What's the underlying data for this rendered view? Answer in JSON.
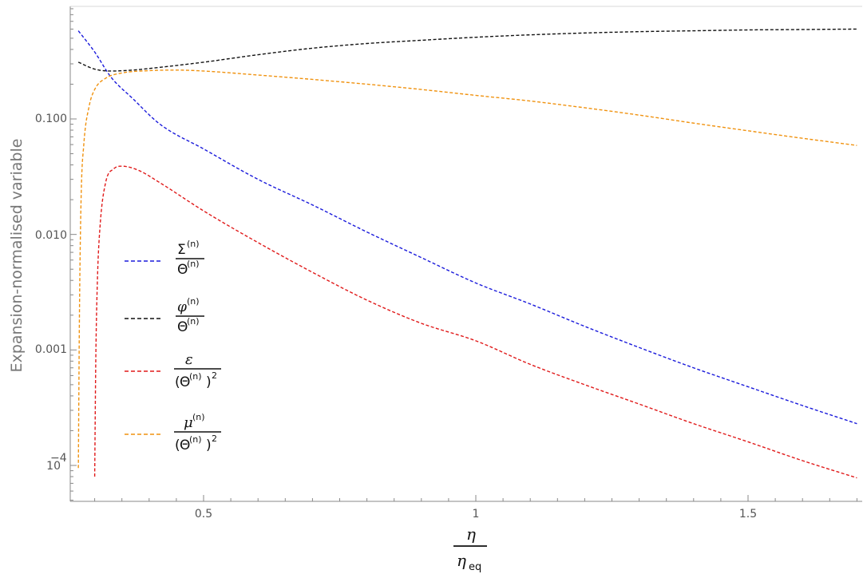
{
  "chart_data": {
    "type": "line",
    "title": "",
    "xlabel": {
      "numerator": "η",
      "denominator_base": "η",
      "denominator_sub": "eq"
    },
    "ylabel": "Expansion-normalised variable",
    "xlim": [
      0.265,
      1.7
    ],
    "ylim": [
      4e-05,
      1
    ],
    "y_scale": "log",
    "x_ticks": [
      0.5,
      1,
      1.5
    ],
    "x_tick_labels": [
      "0.5",
      "1",
      "1.5"
    ],
    "y_ticks": [
      0.0001,
      0.001,
      0.01,
      0.1
    ],
    "y_tick_labels": {
      "t001": "0.001",
      "t010": "0.010",
      "t100": "0.100",
      "t0001_base": "10",
      "t0001_exp": "−4"
    },
    "grid": false,
    "legend_position": "left",
    "line_style": "dashed",
    "series": [
      {
        "name": "Σ(n)/Θ(n)",
        "color": "#1a1adb",
        "legend": {
          "num_base": "Σ",
          "num_sup": "(n)",
          "den_base": "Θ",
          "den_sup": "(n)",
          "den_square": false
        },
        "points": [
          [
            0.27,
            0.58
          ],
          [
            0.3,
            0.38
          ],
          [
            0.33,
            0.23
          ],
          [
            0.37,
            0.15
          ],
          [
            0.42,
            0.09
          ],
          [
            0.5,
            0.055
          ],
          [
            0.6,
            0.03
          ],
          [
            0.7,
            0.018
          ],
          [
            0.8,
            0.0105
          ],
          [
            0.9,
            0.0063
          ],
          [
            1.0,
            0.0038
          ],
          [
            1.1,
            0.0025
          ],
          [
            1.2,
            0.0016
          ],
          [
            1.3,
            0.00105
          ],
          [
            1.4,
            0.0007
          ],
          [
            1.5,
            0.00048
          ],
          [
            1.6,
            0.00033
          ],
          [
            1.7,
            0.00023
          ]
        ]
      },
      {
        "name": "φ(n)/Θ(n)",
        "color": "#111111",
        "legend": {
          "num_base": "φ",
          "num_sup": "(n)",
          "den_base": "Θ",
          "den_sup": "(n)",
          "den_square": false
        },
        "points": [
          [
            0.27,
            0.31
          ],
          [
            0.3,
            0.27
          ],
          [
            0.33,
            0.26
          ],
          [
            0.37,
            0.265
          ],
          [
            0.42,
            0.28
          ],
          [
            0.5,
            0.31
          ],
          [
            0.6,
            0.36
          ],
          [
            0.7,
            0.41
          ],
          [
            0.8,
            0.45
          ],
          [
            0.9,
            0.48
          ],
          [
            1.0,
            0.51
          ],
          [
            1.1,
            0.535
          ],
          [
            1.2,
            0.555
          ],
          [
            1.3,
            0.57
          ],
          [
            1.4,
            0.58
          ],
          [
            1.5,
            0.59
          ],
          [
            1.6,
            0.595
          ],
          [
            1.7,
            0.6
          ]
        ]
      },
      {
        "name": "ε/(Θ(n))2",
        "color": "#e01a1a",
        "legend": {
          "num_base": "ε",
          "num_sup": "",
          "den_base": "Θ",
          "den_sup": "(n)",
          "den_square": true
        },
        "points": [
          [
            0.3,
            8e-05
          ],
          [
            0.302,
            0.0008
          ],
          [
            0.305,
            0.004
          ],
          [
            0.31,
            0.012
          ],
          [
            0.32,
            0.028
          ],
          [
            0.335,
            0.037
          ],
          [
            0.35,
            0.039
          ],
          [
            0.38,
            0.036
          ],
          [
            0.42,
            0.028
          ],
          [
            0.5,
            0.016
          ],
          [
            0.6,
            0.0085
          ],
          [
            0.7,
            0.0047
          ],
          [
            0.8,
            0.0027
          ],
          [
            0.9,
            0.0017
          ],
          [
            1.0,
            0.0012
          ],
          [
            1.1,
            0.00075
          ],
          [
            1.2,
            0.0005
          ],
          [
            1.3,
            0.00034
          ],
          [
            1.4,
            0.00023
          ],
          [
            1.5,
            0.00016
          ],
          [
            1.6,
            0.00011
          ],
          [
            1.7,
            7.8e-05
          ]
        ]
      },
      {
        "name": "μ(n)/(Θ(n))2",
        "color": "#f0920f",
        "legend": {
          "num_base": "μ",
          "num_sup": "(n)",
          "den_base": "Θ",
          "den_sup": "(n)",
          "den_square": true
        },
        "points": [
          [
            0.27,
            9.5e-05
          ],
          [
            0.272,
            0.002
          ],
          [
            0.275,
            0.02
          ],
          [
            0.28,
            0.06
          ],
          [
            0.29,
            0.13
          ],
          [
            0.3,
            0.18
          ],
          [
            0.32,
            0.225
          ],
          [
            0.35,
            0.25
          ],
          [
            0.4,
            0.262
          ],
          [
            0.45,
            0.265
          ],
          [
            0.5,
            0.26
          ],
          [
            0.6,
            0.24
          ],
          [
            0.7,
            0.22
          ],
          [
            0.8,
            0.2
          ],
          [
            0.9,
            0.18
          ],
          [
            1.0,
            0.16
          ],
          [
            1.1,
            0.143
          ],
          [
            1.2,
            0.125
          ],
          [
            1.3,
            0.108
          ],
          [
            1.4,
            0.092
          ],
          [
            1.5,
            0.079
          ],
          [
            1.6,
            0.068
          ],
          [
            1.7,
            0.059
          ]
        ]
      }
    ]
  }
}
